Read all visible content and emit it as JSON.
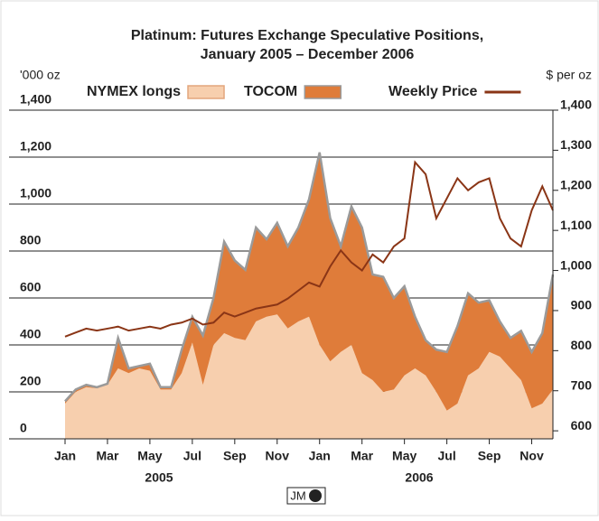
{
  "chart_data": {
    "type": "stacked_area_line",
    "title": "Platinum: Futures Exchange Speculative Positions,",
    "subtitle": "January 2005 – December 2006",
    "y_label": "'000 oz",
    "y2_label": "$ per oz",
    "x_group_labels": [
      "2005",
      "2006"
    ],
    "logo": "JM",
    "x": [
      0,
      0.5,
      1,
      1.5,
      2,
      2.5,
      3,
      3.5,
      4,
      4.5,
      5,
      5.5,
      6,
      6.5,
      7,
      7.5,
      8,
      8.5,
      9,
      9.5,
      10,
      10.5,
      11,
      11.5,
      12,
      12.5,
      13,
      13.5,
      14,
      14.5,
      15,
      15.5,
      16,
      16.5,
      17,
      17.5,
      18,
      18.5,
      19,
      19.5,
      20,
      20.5,
      21,
      21.5,
      22,
      22.5,
      23
    ],
    "series": [
      {
        "name": "NYMEX longs",
        "color": "#f7cfae",
        "values": [
          150,
          200,
          220,
          215,
          230,
          300,
          280,
          300,
          290,
          210,
          210,
          280,
          410,
          230,
          400,
          450,
          430,
          420,
          500,
          520,
          530,
          470,
          500,
          520,
          400,
          330,
          370,
          400,
          280,
          250,
          200,
          210,
          270,
          300,
          270,
          200,
          120,
          150,
          270,
          300,
          370,
          350,
          300,
          250,
          130,
          150,
          210
        ]
      },
      {
        "name": "TOCOM",
        "color": "#df7c3a",
        "edge_color": "#9a9a9a",
        "values": [
          10,
          10,
          10,
          5,
          5,
          130,
          20,
          10,
          30,
          10,
          10,
          100,
          110,
          210,
          200,
          390,
          330,
          300,
          400,
          330,
          390,
          350,
          400,
          500,
          820,
          610,
          450,
          590,
          620,
          450,
          490,
          390,
          380,
          220,
          150,
          180,
          250,
          330,
          350,
          280,
          220,
          150,
          130,
          210,
          240,
          300,
          490
        ]
      },
      {
        "name": "Weekly Price",
        "color": "#8a3516",
        "axis": "y2",
        "values": [
          835,
          845,
          855,
          850,
          855,
          860,
          850,
          855,
          860,
          855,
          865,
          870,
          880,
          865,
          870,
          895,
          885,
          895,
          905,
          910,
          915,
          930,
          950,
          970,
          960,
          1010,
          1050,
          1020,
          1000,
          1040,
          1020,
          1060,
          1080,
          1270,
          1240,
          1130,
          1180,
          1230,
          1200,
          1220,
          1230,
          1130,
          1080,
          1060,
          1150,
          1210,
          1150
        ]
      }
    ],
    "xlim": [
      0,
      23
    ],
    "xticks": [
      {
        "value": 0,
        "label": "Jan"
      },
      {
        "value": 2,
        "label": "Mar"
      },
      {
        "value": 4,
        "label": "May"
      },
      {
        "value": 6,
        "label": "Jul"
      },
      {
        "value": 8,
        "label": "Sep"
      },
      {
        "value": 10,
        "label": "Nov"
      },
      {
        "value": 12,
        "label": "Jan"
      },
      {
        "value": 14,
        "label": "Mar"
      },
      {
        "value": 16,
        "label": "May"
      },
      {
        "value": 18,
        "label": "Jul"
      },
      {
        "value": 20,
        "label": "Sep"
      },
      {
        "value": 22,
        "label": "Nov"
      }
    ],
    "ylim": [
      0,
      1400
    ],
    "yticks": [
      0,
      200,
      400,
      600,
      800,
      {
        "value": 1000,
        "label": "1,000"
      },
      {
        "value": 1200,
        "label": "1,200"
      },
      {
        "value": 1400,
        "label": "1,400"
      }
    ],
    "y2lim": [
      580,
      1400
    ],
    "y2ticks": [
      600,
      700,
      800,
      900,
      {
        "value": 1000,
        "label": "1,000"
      },
      {
        "value": 1100,
        "label": "1,100"
      },
      {
        "value": 1200,
        "label": "1,200"
      },
      {
        "value": 1300,
        "label": "1,300"
      },
      {
        "value": 1400,
        "label": "1,400"
      }
    ],
    "grid": true
  }
}
